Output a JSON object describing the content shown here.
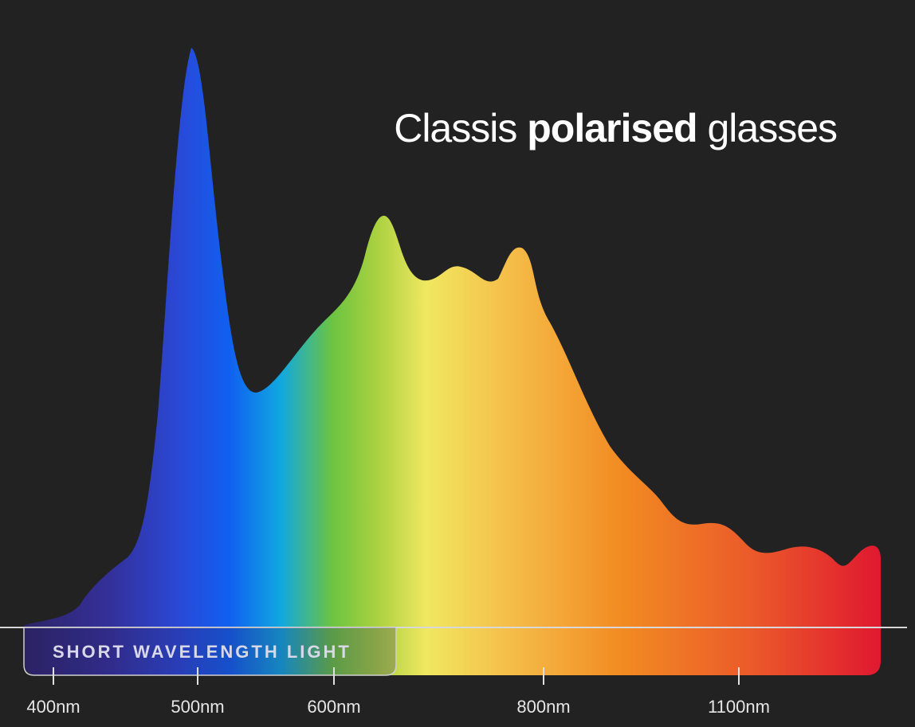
{
  "title": {
    "before": "Classis",
    "bold": "polarised",
    "after": "glasses"
  },
  "band_label": "SHORT WAVELENGTH LIGHT",
  "ticks": [
    "400nm",
    "500nm",
    "600nm",
    "800nm",
    "1100nm"
  ]
}
